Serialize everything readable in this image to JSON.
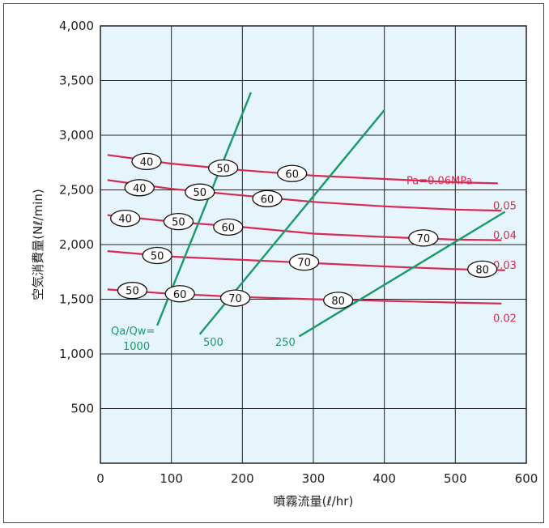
{
  "chart_data": {
    "type": "line",
    "xlabel": "噴霧流量(ℓ/hr)",
    "ylabel": "空気消費量(Nℓ/min)",
    "xlim": [
      0,
      600
    ],
    "ylim": [
      0,
      4000
    ],
    "x_ticks": [
      "0",
      "100",
      "200",
      "300",
      "400",
      "500",
      "600"
    ],
    "y_ticks": [
      "500",
      "1,000",
      "1,500",
      "2,000",
      "2,500",
      "3,000",
      "3,500",
      "4,000"
    ],
    "grid": true,
    "colors": {
      "plot_bg": "#e6f4fb",
      "pressure": "#d62a52",
      "ratio": "#1a9a6a"
    },
    "pressure_series": [
      {
        "name": "Pa=0.06MPa",
        "x": [
          10,
          100,
          200,
          300,
          400,
          500,
          560
        ],
        "y": [
          2820,
          2740,
          2680,
          2630,
          2600,
          2570,
          2560
        ]
      },
      {
        "name": "0.05",
        "x": [
          10,
          100,
          200,
          300,
          400,
          500,
          565
        ],
        "y": [
          2590,
          2510,
          2450,
          2390,
          2350,
          2320,
          2310
        ]
      },
      {
        "name": "0.04",
        "x": [
          10,
          100,
          200,
          300,
          400,
          500,
          565
        ],
        "y": [
          2270,
          2210,
          2160,
          2100,
          2070,
          2045,
          2040
        ]
      },
      {
        "name": "0.03",
        "x": [
          10,
          100,
          200,
          300,
          400,
          500,
          570
        ],
        "y": [
          1940,
          1890,
          1860,
          1830,
          1800,
          1775,
          1765
        ]
      },
      {
        "name": "0.02",
        "x": [
          10,
          100,
          200,
          300,
          400,
          500,
          565
        ],
        "y": [
          1590,
          1550,
          1520,
          1500,
          1485,
          1470,
          1460
        ]
      }
    ],
    "ratio_series": [
      {
        "name": "Qa/Qw=",
        "name2": "1000",
        "x": [
          80,
          212
        ],
        "y": [
          1260,
          3390
        ]
      },
      {
        "name": "500",
        "x": [
          140,
          400
        ],
        "y": [
          1180,
          3230
        ]
      },
      {
        "name": "250",
        "x": [
          280,
          570
        ],
        "y": [
          1160,
          2300
        ]
      }
    ],
    "bubbles": [
      {
        "label": "40",
        "x": 65,
        "y": 2760
      },
      {
        "label": "50",
        "x": 173,
        "y": 2700
      },
      {
        "label": "60",
        "x": 270,
        "y": 2650
      },
      {
        "label": "40",
        "x": 55,
        "y": 2520
      },
      {
        "label": "50",
        "x": 140,
        "y": 2480
      },
      {
        "label": "60",
        "x": 235,
        "y": 2420
      },
      {
        "label": "40",
        "x": 35,
        "y": 2240
      },
      {
        "label": "50",
        "x": 110,
        "y": 2210
      },
      {
        "label": "60",
        "x": 180,
        "y": 2160
      },
      {
        "label": "70",
        "x": 455,
        "y": 2060
      },
      {
        "label": "50",
        "x": 80,
        "y": 1900
      },
      {
        "label": "70",
        "x": 287,
        "y": 1840
      },
      {
        "label": "80",
        "x": 538,
        "y": 1775
      },
      {
        "label": "50",
        "x": 45,
        "y": 1580
      },
      {
        "label": "60",
        "x": 112,
        "y": 1550
      },
      {
        "label": "70",
        "x": 190,
        "y": 1510
      },
      {
        "label": "80",
        "x": 335,
        "y": 1490
      }
    ]
  }
}
